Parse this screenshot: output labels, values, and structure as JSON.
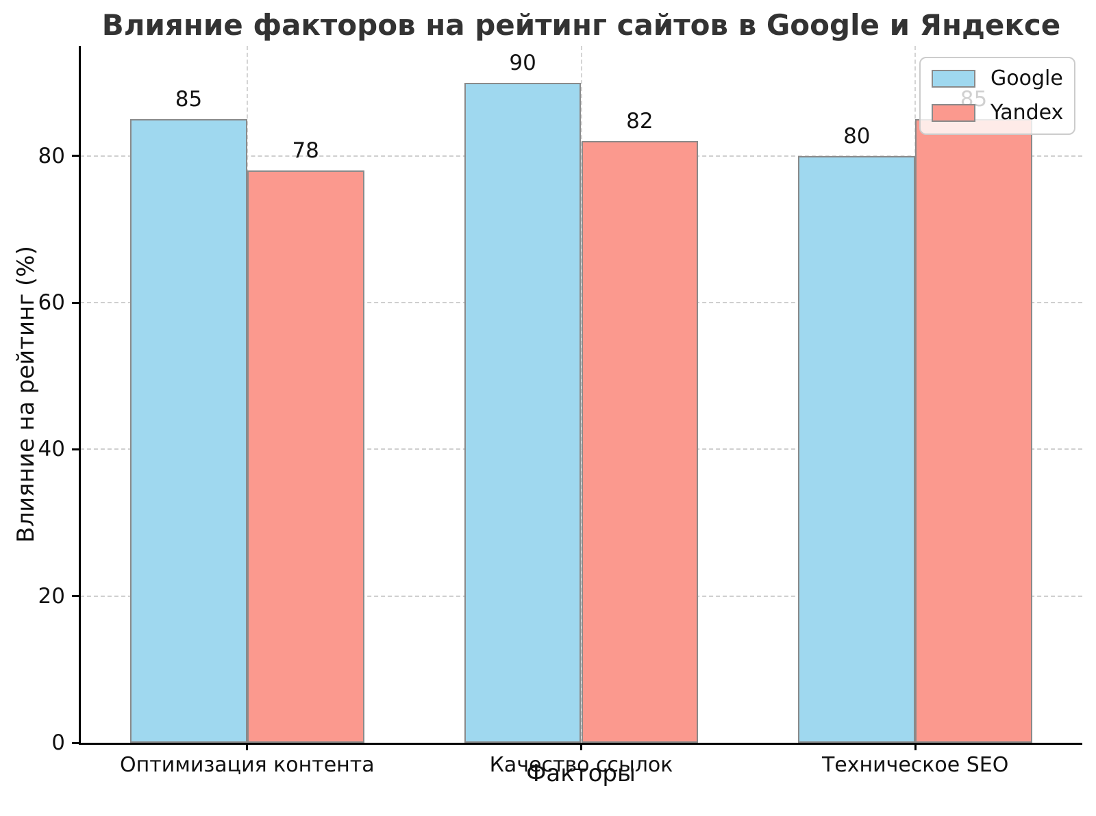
{
  "chart_data": {
    "type": "bar",
    "title": "Влияние факторов на рейтинг сайтов в Google и Яндексе",
    "xlabel": "Факторы",
    "ylabel": "Влияние на рейтинг (%)",
    "categories": [
      "Оптимизация контента",
      "Качество ссылок",
      "Техническое SEO"
    ],
    "series": [
      {
        "name": "Google",
        "values": [
          85,
          90,
          80
        ],
        "color": "#9FD8EF"
      },
      {
        "name": "Yandex",
        "values": [
          78,
          82,
          85
        ],
        "color": "#FB998E"
      }
    ],
    "ylim": [
      0,
      95
    ],
    "yticks": [
      0,
      20,
      40,
      60,
      80
    ],
    "bar_width_units": 0.35,
    "grid": "dashed",
    "legend_position": "upper right",
    "colors": {
      "bar_edge": "#8a8a8a",
      "grid": "#cfcfcf",
      "axis": "#000000",
      "title": "#333333",
      "legend_border": "#cccccc",
      "legend_background": "rgba(255,255,255,0.8)"
    }
  }
}
